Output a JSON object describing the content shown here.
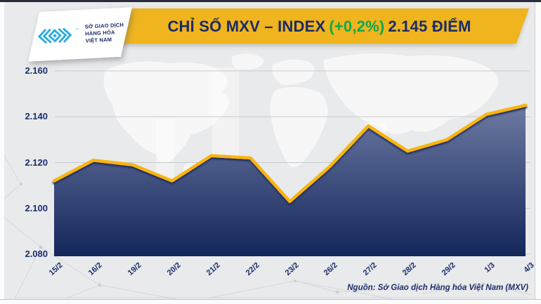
{
  "header": {
    "title_main": "CHỈ SỐ MXV – INDEX",
    "title_change": "(+0,2%)",
    "title_value": "2.145 ĐIỂM",
    "banner_color": "#EFB41E",
    "title_color": "#1B2B66",
    "change_color": "#0CA94F"
  },
  "logo": {
    "lines": [
      "SỞ GIAO DỊCH",
      "HÀNG HÓA",
      "VIỆT NAM"
    ],
    "trademark": "™",
    "glyph_color": "#2AACE2"
  },
  "chart_data": {
    "type": "area",
    "title": "CHỈ SỐ MXV – INDEX (+0,2%) 2.145 ĐIỂM",
    "xlabel": "",
    "ylabel": "",
    "categories": [
      "15/2",
      "16/2",
      "19/2",
      "20/2",
      "21/2",
      "22/2",
      "23/2",
      "26/2",
      "27/2",
      "28/2",
      "29/2",
      "1/3",
      "4/3"
    ],
    "values": [
      2112,
      2121,
      2119,
      2112,
      2123,
      2122,
      2103,
      2118,
      2136,
      2125,
      2130,
      2141,
      2145
    ],
    "unit": "điểm",
    "ylim": [
      2080,
      2160
    ],
    "yticks": [
      {
        "value": 2080,
        "label": "2.080"
      },
      {
        "value": 2100,
        "label": "2.100"
      },
      {
        "value": 2120,
        "label": "2.120"
      },
      {
        "value": 2140,
        "label": "2.140"
      },
      {
        "value": 2160,
        "label": "2.160"
      }
    ],
    "grid": true,
    "legend": false,
    "line_color": "#F8B50C",
    "line_shadow_color": "#1A2C5E",
    "fill_top": "#6E7BA4",
    "fill_bottom": "#13265A"
  },
  "source": {
    "text": "Nguồn: Sở Giao dịch Hàng hóa Việt Nam (MXV)"
  }
}
